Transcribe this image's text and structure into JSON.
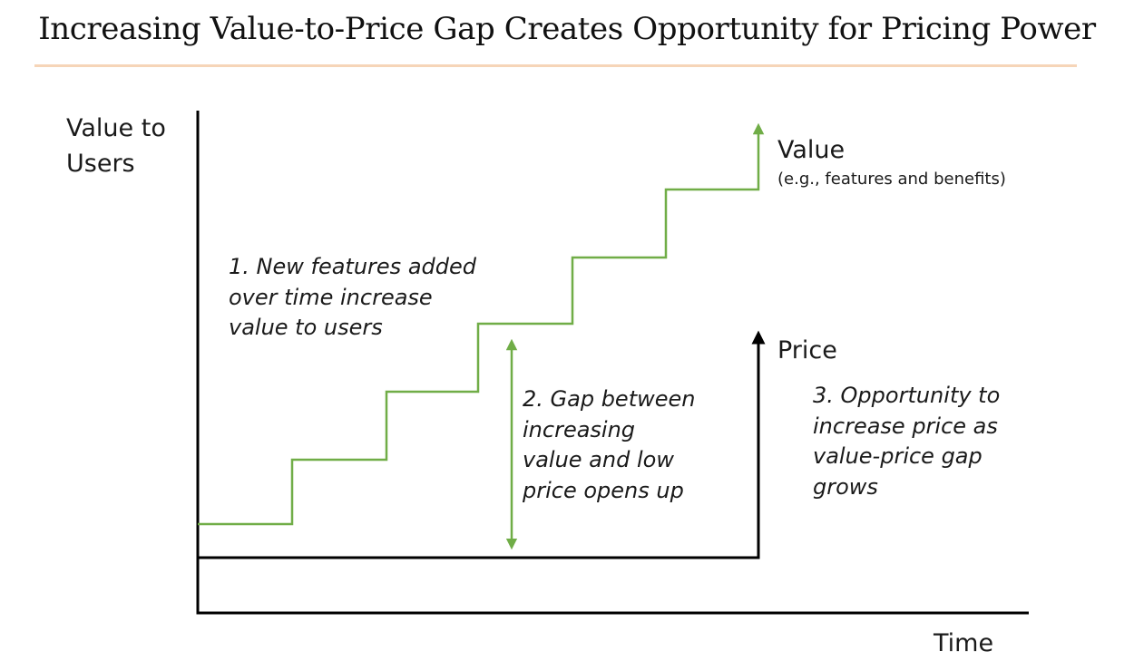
{
  "title": "Increasing Value-to-Price Gap Creates Opportunity for Pricing Power",
  "axes": {
    "y_label_line1": "Value to",
    "y_label_line2": "Users",
    "x_label": "Time"
  },
  "series": {
    "value_label": "Value",
    "value_note": "(e.g., features and benefits)",
    "price_label": "Price"
  },
  "annotations": {
    "note1": [
      "1. New features added",
      "over time increase",
      "value to users"
    ],
    "note2": [
      "2. Gap between",
      "increasing",
      "value and low",
      "price opens up"
    ],
    "note3": [
      "3. Opportunity to",
      "increase price as",
      "value-price gap",
      "grows"
    ]
  },
  "colors": {
    "value_line": "#70ad47",
    "price_line": "#000000",
    "axis": "#000000",
    "title_rule": "#f6d5b8"
  }
}
